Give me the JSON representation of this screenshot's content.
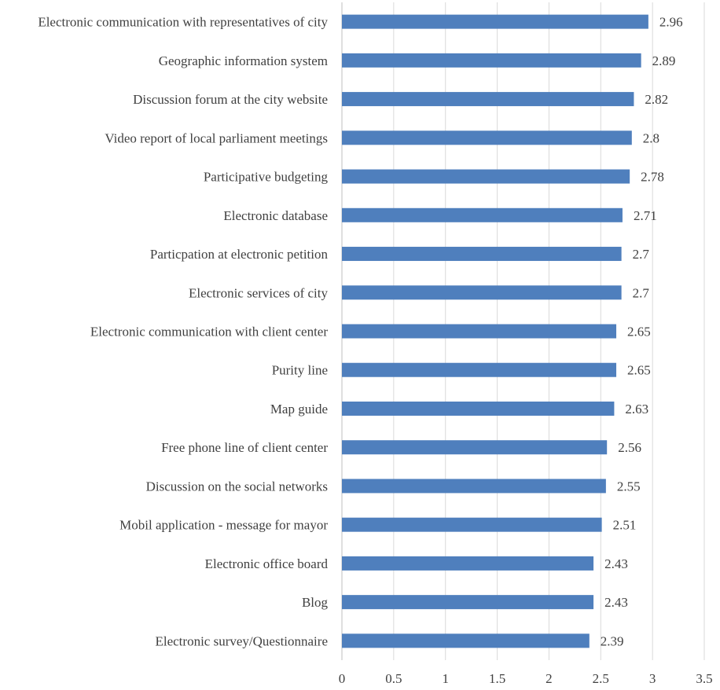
{
  "chart_data": {
    "type": "bar",
    "orientation": "horizontal",
    "categories": [
      "Electronic communication with representatives of city",
      "Geographic information system",
      "Discussion forum at the city website",
      "Video report of local parliament meetings",
      "Participative budgeting",
      "Electronic database",
      "Particpation at electronic petition",
      "Electronic services of city",
      "Electronic communication with client center",
      "Purity line",
      "Map guide",
      "Free phone line of client center",
      "Discussion on the social networks",
      "Mobil application - message for mayor",
      "Electronic office board",
      "Blog",
      "Electronic survey/Questionnaire"
    ],
    "values": [
      2.96,
      2.89,
      2.82,
      2.8,
      2.78,
      2.71,
      2.7,
      2.7,
      2.65,
      2.65,
      2.63,
      2.56,
      2.55,
      2.51,
      2.43,
      2.43,
      2.39
    ],
    "value_labels": [
      "2.96",
      "2.89",
      "2.82",
      "2.8",
      "2.78",
      "2.71",
      "2.7",
      "2.7",
      "2.65",
      "2.65",
      "2.63",
      "2.56",
      "2.55",
      "2.51",
      "2.43",
      "2.43",
      "2.39"
    ],
    "x_ticks": [
      "0",
      "0.5",
      "1",
      "1.5",
      "2",
      "2.5",
      "3",
      "3.5"
    ],
    "xlim": [
      0,
      3.5
    ],
    "title": "",
    "xlabel": "",
    "ylabel": "",
    "grid": "vertical",
    "legend": "none",
    "bar_color": "#4f7fbd"
  }
}
